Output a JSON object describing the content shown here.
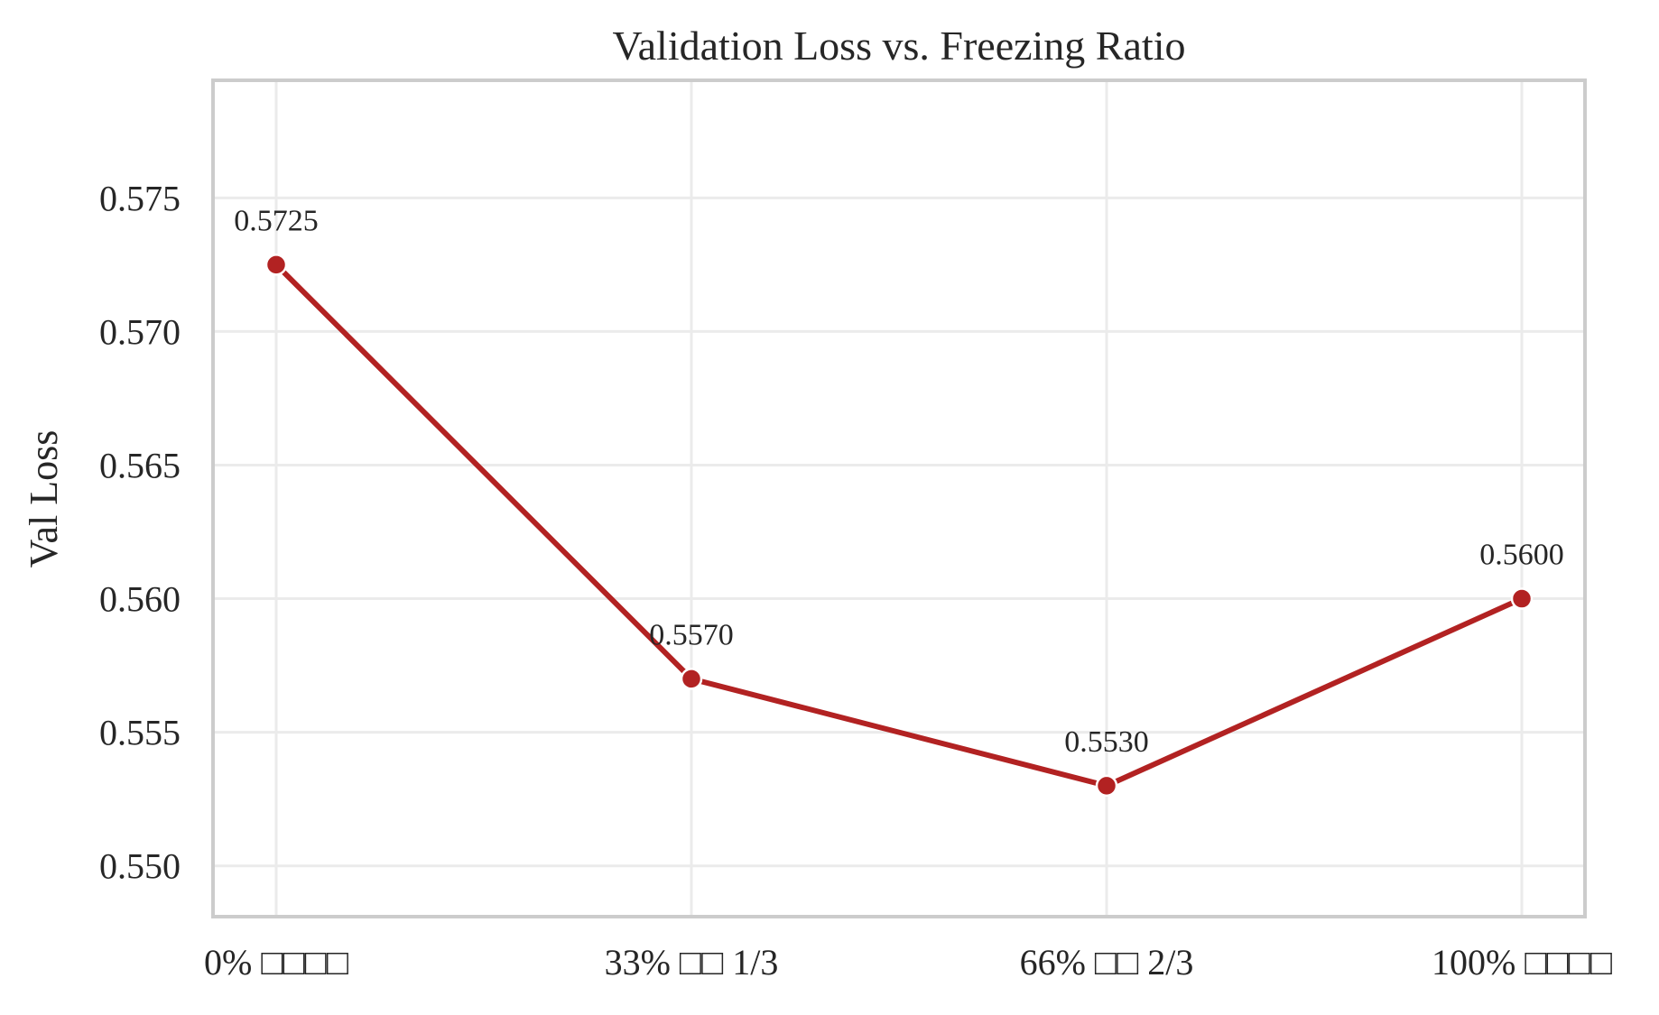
{
  "chart_data": {
    "type": "line",
    "title": "Validation Loss vs. Freezing Ratio",
    "xlabel": "",
    "ylabel": "Val Loss",
    "categories": [
      "0% □□□□",
      "33% □□ 1/3",
      "66% □□ 2/3",
      "100% □□□□"
    ],
    "series": [
      {
        "values": [
          0.5725,
          0.557,
          0.553,
          0.56
        ]
      }
    ],
    "data_labels": [
      "0.5725",
      "0.5570",
      "0.5530",
      "0.5600"
    ],
    "yticks": [
      "0.550",
      "0.555",
      "0.560",
      "0.565",
      "0.570",
      "0.575"
    ],
    "ylim": [
      0.5481,
      0.5794
    ],
    "grid": true,
    "legend": "none",
    "colors": {
      "line": "#b22222",
      "marker_edge": "#ffffff"
    }
  }
}
